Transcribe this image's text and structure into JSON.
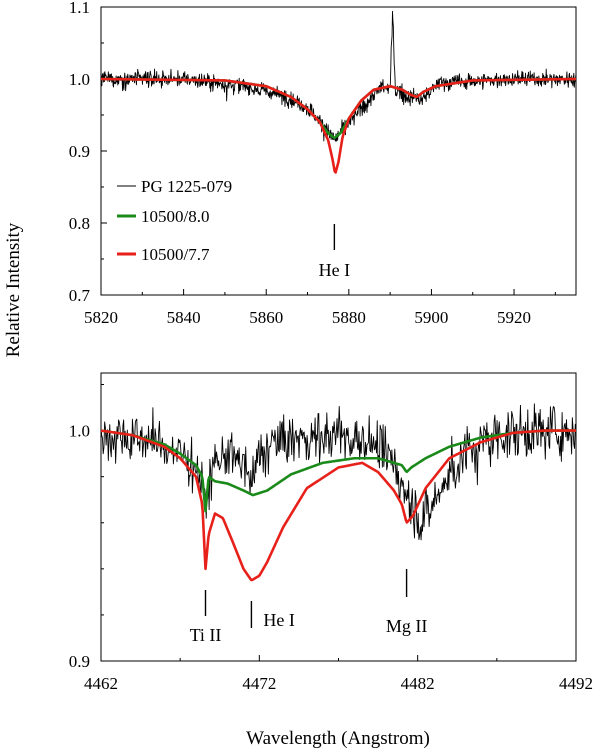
{
  "figure": {
    "ylabel": "Relative Intensity",
    "xlabel": "Wavelength (Angstrom)"
  },
  "legend": {
    "entries": [
      {
        "label": "PG 1225-079",
        "color": "#000000"
      },
      {
        "label": "10500/8.0",
        "color": "#1a8a1a"
      },
      {
        "label": "10500/7.7",
        "color": "#e8201a"
      }
    ]
  },
  "chart_data": [
    {
      "type": "line",
      "panel": "top",
      "xlim": [
        5820,
        5935
      ],
      "ylim": [
        0.7,
        1.1
      ],
      "xticks": [
        5820,
        5840,
        5860,
        5880,
        5900,
        5920
      ],
      "yticks": [
        0.7,
        0.8,
        0.9,
        1.0,
        1.1
      ],
      "ytick_labels": [
        "0.7",
        "0.8",
        "0.9",
        "1.0",
        "1.1"
      ],
      "annotations": [
        {
          "text": "He I",
          "x": 5876.5
        }
      ],
      "series": [
        {
          "name": "PG 1225-079",
          "color": "#000000",
          "kind": "noisy-spectrum",
          "x": [
            5820,
            5840,
            5855,
            5865,
            5870,
            5874,
            5876.5,
            5880,
            5884,
            5888,
            5890,
            5890.6,
            5891.3,
            5894,
            5896,
            5897.5,
            5902,
            5920,
            5935
          ],
          "y": [
            1.0,
            1.0,
            0.99,
            0.975,
            0.96,
            0.935,
            0.915,
            0.94,
            0.965,
            0.99,
            0.985,
            1.09,
            0.985,
            0.975,
            0.975,
            0.97,
            0.995,
            1.0,
            1.0
          ]
        },
        {
          "name": "10500/8.0",
          "color": "#1a8a1a",
          "x": [
            5820,
            5850,
            5860,
            5866,
            5870,
            5873,
            5875,
            5876.5,
            5878,
            5880,
            5883,
            5886,
            5890,
            5893,
            5895,
            5896.5,
            5898,
            5901,
            5910,
            5935
          ],
          "y": [
            1.0,
            0.998,
            0.99,
            0.975,
            0.958,
            0.94,
            0.925,
            0.918,
            0.925,
            0.945,
            0.97,
            0.985,
            0.99,
            0.985,
            0.978,
            0.975,
            0.982,
            0.99,
            0.998,
            1.0
          ]
        },
        {
          "name": "10500/7.7",
          "color": "#e8201a",
          "x": [
            5820,
            5850,
            5860,
            5866,
            5870,
            5873,
            5875,
            5876,
            5876.7,
            5877.5,
            5878.5,
            5880,
            5883,
            5886,
            5890,
            5893,
            5895,
            5896.5,
            5898,
            5901,
            5910,
            5935
          ],
          "y": [
            1.0,
            0.998,
            0.99,
            0.975,
            0.958,
            0.94,
            0.915,
            0.89,
            0.868,
            0.885,
            0.92,
            0.945,
            0.97,
            0.985,
            0.99,
            0.985,
            0.978,
            0.975,
            0.982,
            0.99,
            0.998,
            1.0
          ]
        }
      ]
    },
    {
      "type": "line",
      "panel": "bottom",
      "xlim": [
        4462,
        4492
      ],
      "ylim": [
        0.9,
        1.025
      ],
      "xticks": [
        4462,
        4472,
        4482,
        4492
      ],
      "yticks": [
        0.9,
        1.0
      ],
      "ytick_labels": [
        "0.9",
        "1.0"
      ],
      "annotations": [
        {
          "text": "Ti II",
          "x": 4468.6
        },
        {
          "text": "He I",
          "x": 4471.5
        },
        {
          "text": "Mg II",
          "x": 4481.3
        }
      ],
      "series": [
        {
          "name": "PG 1225-079",
          "color": "#000000",
          "kind": "noisy-spectrum",
          "x": [
            4462,
            4465,
            4467,
            4468,
            4468.6,
            4469.2,
            4470,
            4471,
            4471.5,
            4472,
            4473,
            4475,
            4477,
            4479,
            4480.5,
            4481.5,
            4482.3,
            4483.5,
            4485,
            4487,
            4490,
            4492
          ],
          "y": [
            0.998,
            0.996,
            0.99,
            0.985,
            0.97,
            0.985,
            0.99,
            0.985,
            0.975,
            0.99,
            0.995,
            0.997,
            0.998,
            0.995,
            0.985,
            0.97,
            0.96,
            0.975,
            0.99,
            0.998,
            1.0,
            1.0
          ]
        },
        {
          "name": "10500/8.0",
          "color": "#1a8a1a",
          "x": [
            4462,
            4464,
            4466,
            4467,
            4468,
            4468.4,
            4468.6,
            4468.8,
            4469.2,
            4470,
            4471,
            4471.6,
            4472.5,
            4474,
            4476,
            4478,
            4479.5,
            4480.5,
            4481,
            4481.3,
            4481.6,
            4482.5,
            4484,
            4486,
            4488,
            4490,
            4492
          ],
          "y": [
            1.0,
            0.998,
            0.994,
            0.99,
            0.985,
            0.98,
            0.965,
            0.98,
            0.978,
            0.977,
            0.974,
            0.972,
            0.974,
            0.981,
            0.986,
            0.988,
            0.988,
            0.986,
            0.985,
            0.982,
            0.984,
            0.988,
            0.993,
            0.997,
            0.999,
            1.0,
            1.0
          ]
        },
        {
          "name": "10500/7.7",
          "color": "#e8201a",
          "x": [
            4462,
            4464,
            4466,
            4467,
            4468,
            4468.4,
            4468.6,
            4468.8,
            4469.2,
            4469.7,
            4470.3,
            4471,
            4471.5,
            4472,
            4472.5,
            4473.5,
            4475,
            4477,
            4478.5,
            4479.5,
            4480.5,
            4481,
            4481.3,
            4481.7,
            4482.5,
            4484,
            4486,
            4488,
            4490,
            4492
          ],
          "y": [
            1.0,
            0.998,
            0.993,
            0.988,
            0.98,
            0.968,
            0.94,
            0.955,
            0.964,
            0.962,
            0.952,
            0.94,
            0.935,
            0.937,
            0.943,
            0.958,
            0.975,
            0.984,
            0.986,
            0.982,
            0.974,
            0.968,
            0.96,
            0.963,
            0.975,
            0.988,
            0.995,
            0.999,
            1.0,
            1.0
          ]
        }
      ]
    }
  ]
}
